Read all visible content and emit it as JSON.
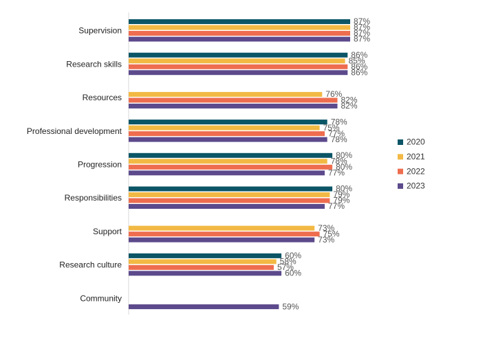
{
  "chart_data": {
    "type": "bar",
    "orientation": "horizontal",
    "title": "",
    "xlabel": "",
    "ylabel": "",
    "xlim": [
      0,
      100
    ],
    "grid": false,
    "legend_position": "right",
    "categories": [
      "Supervision",
      "Research skills",
      "Resources",
      "Professional development",
      "Progression",
      "Responsibilities",
      "Support",
      "Research culture",
      "Community"
    ],
    "series": [
      {
        "name": "2020",
        "color": "#0b5566",
        "values": [
          87,
          86,
          null,
          78,
          80,
          80,
          null,
          60,
          null
        ]
      },
      {
        "name": "2021",
        "color": "#f2b944",
        "values": [
          87,
          85,
          76,
          75,
          78,
          79,
          73,
          58,
          null
        ]
      },
      {
        "name": "2022",
        "color": "#ee6d4f",
        "values": [
          87,
          86,
          82,
          77,
          80,
          79,
          75,
          57,
          null
        ]
      },
      {
        "name": "2023",
        "color": "#5c4a8c",
        "values": [
          87,
          86,
          82,
          78,
          77,
          77,
          73,
          60,
          59
        ]
      }
    ]
  }
}
